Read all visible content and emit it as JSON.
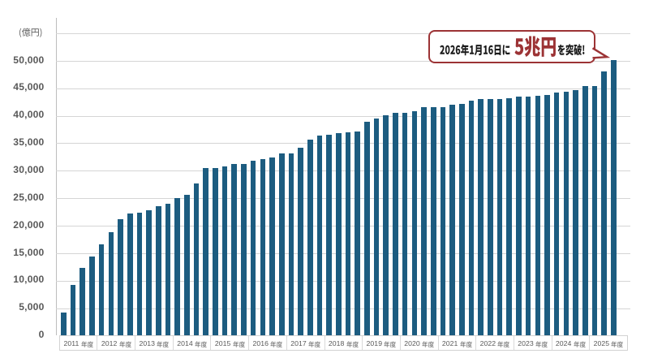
{
  "chart_data": {
    "type": "bar",
    "unit_label": "(億円)",
    "ylim": [
      0,
      55000
    ],
    "grid_step": 5000,
    "y_tick_labels": [
      "0",
      "5,000",
      "10,000",
      "15,000",
      "20,000",
      "25,000",
      "30,000",
      "35,000",
      "40,000",
      "45,000",
      "50,000"
    ],
    "categories": [
      "2011 年度",
      "2012 年度",
      "2013 年度",
      "2014 年度",
      "2015 年度",
      "2016 年度",
      "2017 年度",
      "2018 年度",
      "2019 年度",
      "2020 年度",
      "2021 年度",
      "2022 年度",
      "2023 年度",
      "2024 年度",
      "2025 年度"
    ],
    "values_by_year": [
      [
        4150,
        9200,
        12350,
        14400
      ],
      [
        16650,
        18800,
        21200,
        22150
      ],
      [
        22350,
        22750,
        23550,
        24000
      ],
      [
        24950,
        25600,
        27700,
        30500
      ],
      [
        30550,
        30850,
        31200,
        31250
      ],
      [
        31800,
        32100,
        32400,
        33150
      ],
      [
        33200,
        34150,
        35650,
        36450
      ],
      [
        36500,
        36900,
        37050,
        37150
      ],
      [
        38900,
        39500,
        40100,
        40500
      ],
      [
        40500,
        40800,
        41500,
        41600
      ],
      [
        41500,
        42050,
        42200,
        42750
      ],
      [
        43050,
        43050,
        43100,
        43200
      ],
      [
        43500,
        43550,
        43700,
        43750
      ],
      [
        44200,
        44350,
        44650,
        45350
      ],
      [
        45450,
        48050,
        50200
      ]
    ],
    "bar_color": "#1c5c80",
    "annotation": {
      "prefix": "2026年1月16日に",
      "highlight": "5兆円",
      "suffix": "を突破!",
      "color": "#9c3335"
    }
  }
}
